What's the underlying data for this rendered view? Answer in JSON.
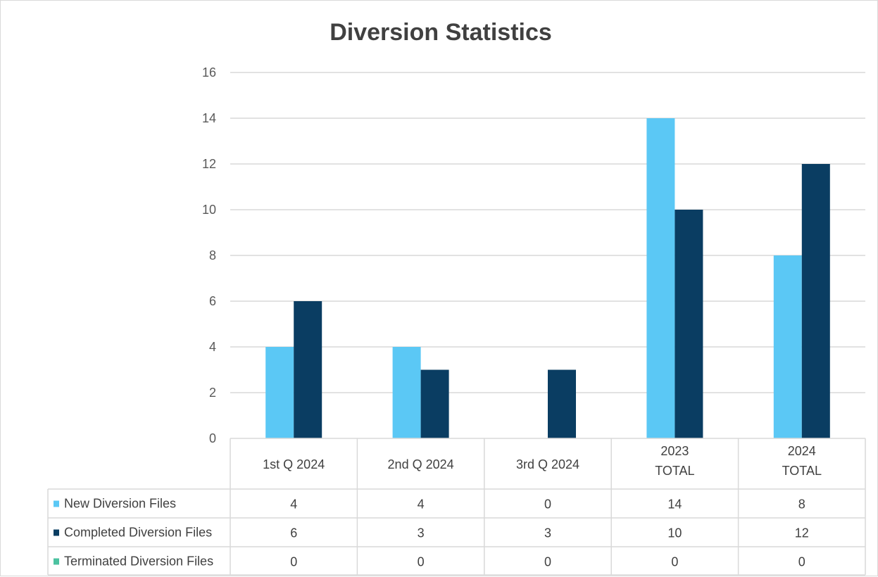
{
  "chart_data": {
    "type": "bar",
    "title": "Diversion Statistics",
    "categories": [
      [
        "1st Q 2024"
      ],
      [
        "2nd Q 2024"
      ],
      [
        "3rd Q 2024"
      ],
      [
        "2023",
        "TOTAL"
      ],
      [
        "2024",
        "TOTAL"
      ]
    ],
    "ylim": [
      0,
      16
    ],
    "yticks": [
      0,
      2,
      4,
      6,
      8,
      10,
      12,
      14,
      16
    ],
    "grid": true,
    "legend": "data-table",
    "series": [
      {
        "name": "New Diversion Files",
        "color": "#5bc8f5",
        "values": [
          4,
          4,
          0,
          14,
          8
        ]
      },
      {
        "name": "Completed Diversion Files",
        "color": "#0a3d62",
        "values": [
          6,
          3,
          3,
          10,
          12
        ]
      },
      {
        "name": "Terminated Diversion Files",
        "color": "#4cc2a0",
        "values": [
          0,
          0,
          0,
          0,
          0
        ]
      }
    ]
  }
}
